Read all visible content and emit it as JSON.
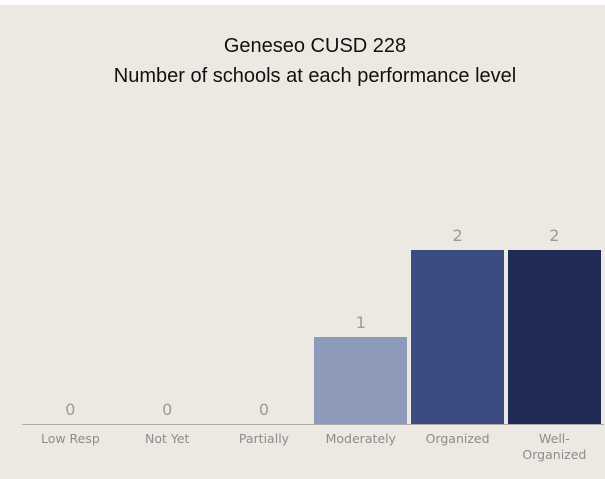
{
  "chart_data": {
    "type": "bar",
    "title": "Geneseo CUSD 228",
    "subtitle": "Number of schools at each performance level",
    "categories": [
      "Low Resp",
      "Not Yet",
      "Partially",
      "Moderately",
      "Organized",
      "Well-Organized"
    ],
    "values": [
      0,
      0,
      0,
      1,
      2,
      2
    ],
    "colors": [
      "#c9cedc",
      "#b3bbd0",
      "#a0aac6",
      "#8d9aba",
      "#3d4c80",
      "#1f2b55"
    ]
  }
}
